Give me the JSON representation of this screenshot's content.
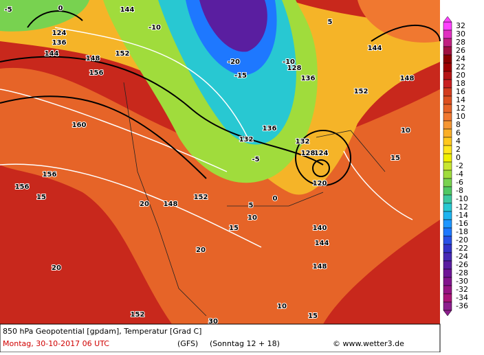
{
  "map": {
    "colorbar": {
      "ticks": [
        32,
        30,
        28,
        26,
        24,
        22,
        20,
        18,
        16,
        14,
        12,
        10,
        8,
        6,
        4,
        2,
        0,
        -2,
        -4,
        -6,
        -8,
        -10,
        -12,
        -14,
        -16,
        -18,
        -20,
        -22,
        -24,
        -26,
        -28,
        -30,
        -32,
        -34,
        -36
      ],
      "colors": [
        "#ff40ff",
        "#e030c0",
        "#c02080",
        "#a01040",
        "#8c0000",
        "#a00000",
        "#b41414",
        "#c82020",
        "#d23c1e",
        "#dc5020",
        "#e66428",
        "#f07830",
        "#f59632",
        "#faaf28",
        "#ffc81e",
        "#ffe61e",
        "#f0f000",
        "#c8e632",
        "#a0dc3c",
        "#78d250",
        "#50c864",
        "#3cc8a0",
        "#28c8d2",
        "#1eb4f0",
        "#1e96ff",
        "#1e78ff",
        "#2850e6",
        "#3232c8",
        "#4628b4",
        "#5a1ea0",
        "#6e1496",
        "#82148c",
        "#961482",
        "#aa1478",
        "#8c1e8c"
      ]
    },
    "contour_labels": [
      "144",
      "-5",
      "0",
      "124",
      "136",
      "144",
      "152",
      "148",
      "156",
      "160",
      "156",
      "156",
      "15",
      "20",
      "152",
      "-10",
      "-20",
      "-15",
      "-10",
      "128",
      "136",
      "144",
      "148",
      "152",
      "10",
      "15",
      "120",
      "124",
      "128",
      "132",
      "136",
      "132",
      "-5",
      "0",
      "5",
      "10",
      "140",
      "144",
      "148",
      "15",
      "10",
      "20",
      "20",
      "148",
      "152",
      "15",
      "30",
      "5"
    ],
    "footer": {
      "title": "850 hPa Geopotential [gpdam], Temperatur [Grad C]",
      "date": "Montag, 30-10-2017  06 UTC",
      "model": "(GFS)",
      "run": "(Sonntag 12 + 18)",
      "credit": "© www.wetter3.de"
    }
  }
}
